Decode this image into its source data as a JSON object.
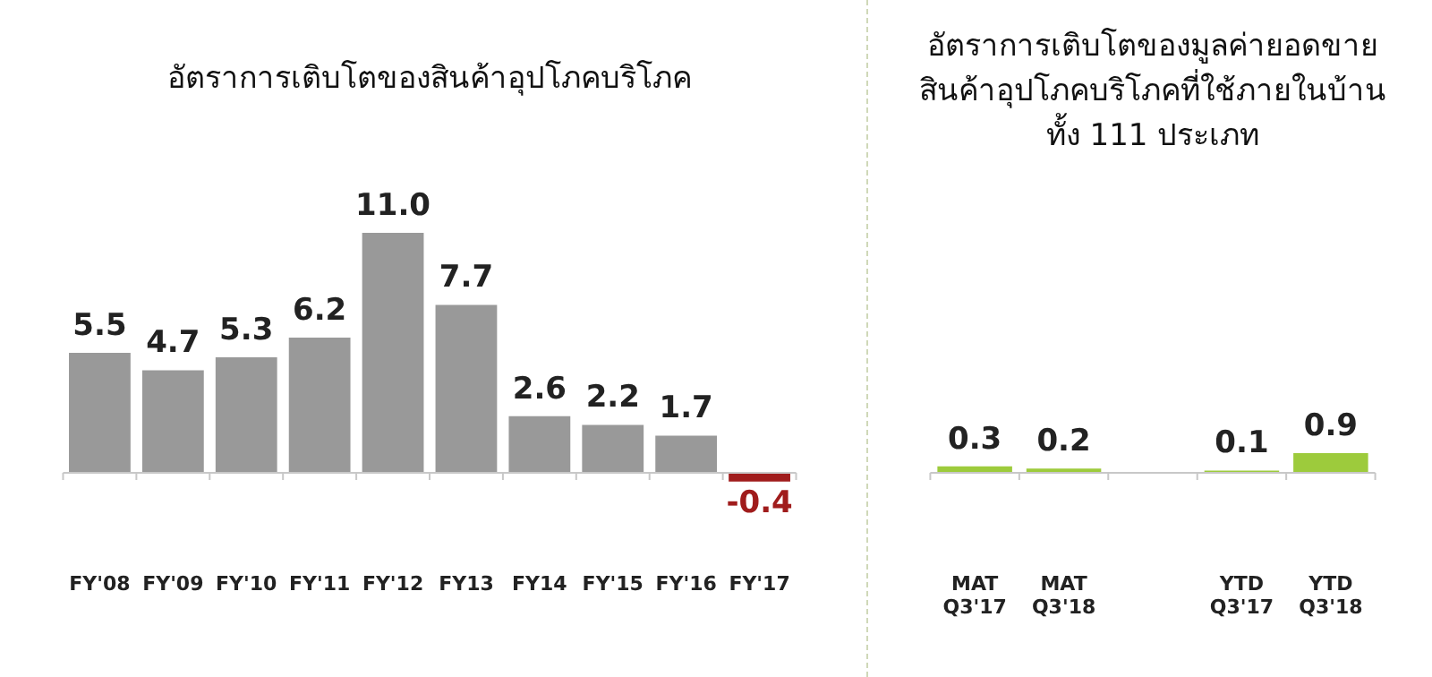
{
  "chart_data": [
    {
      "type": "bar",
      "title": "อัตราการเติบโตของสินค้าอุปโภคบริโภค",
      "categories": [
        "FY'08",
        "FY'09",
        "FY'10",
        "FY'11",
        "FY'12",
        "FY13",
        "FY14",
        "FY'15",
        "FY'16",
        "FY'17"
      ],
      "values": [
        5.5,
        4.7,
        5.3,
        6.2,
        11.0,
        7.7,
        2.6,
        2.2,
        1.7,
        -0.4
      ],
      "colors": [
        "#999999",
        "#999999",
        "#999999",
        "#999999",
        "#999999",
        "#999999",
        "#999999",
        "#999999",
        "#999999",
        "#a01c1c"
      ],
      "value_labels": [
        "5.5",
        "4.7",
        "5.3",
        "6.2",
        "11.0",
        "7.7",
        "2.6",
        "2.2",
        "1.7",
        "-0.4"
      ],
      "grid": false,
      "legend": false
    },
    {
      "type": "bar",
      "title": "อัตราการเติบโตของมูลค่ายอดขายสินค้าอุปโภคบริโภคที่ใช้ภายในบ้านทั้ง 111 ประเภท",
      "categories": [
        "MAT Q3'17",
        "MAT Q3'18",
        null,
        "YTD Q3'17",
        "YTD Q3'18"
      ],
      "values": [
        0.3,
        0.2,
        null,
        0.1,
        0.9
      ],
      "colors": [
        "#9dcb3c",
        "#9dcb3c",
        "#9dcb3c",
        "#9dcb3c",
        "#9dcb3c"
      ],
      "value_labels": [
        "0.3",
        "0.2",
        null,
        "0.1",
        "0.9"
      ],
      "grid": false,
      "legend": false
    }
  ]
}
